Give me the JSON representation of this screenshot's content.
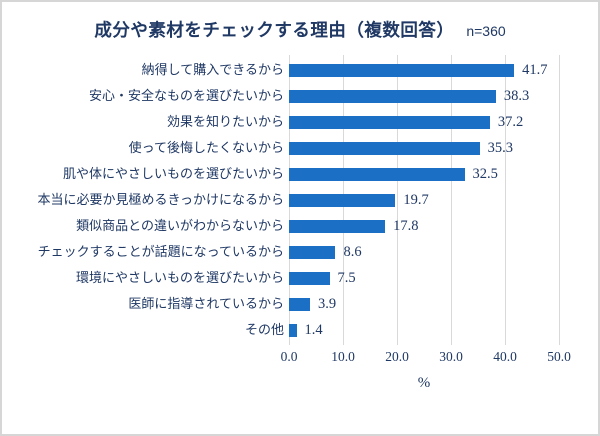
{
  "header": {
    "title": "成分や素材をチェックする理由（複数回答）",
    "sample_size": "n=360"
  },
  "chart_data": {
    "type": "bar",
    "orientation": "horizontal",
    "title": "成分や素材をチェックする理由（複数回答）",
    "subtitle": "n=360",
    "categories": [
      "納得して購入できるから",
      "安心・安全なものを選びたいから",
      "効果を知りたいから",
      "使って後悔したくないから",
      "肌や体にやさしいものを選びたいから",
      "本当に必要か見極めるきっかけになるから",
      "類似商品との違いがわからないから",
      "チェックすることが話題になっているから",
      "環境にやさしいものを選びたいから",
      "医師に指導されているから",
      "その他"
    ],
    "values": [
      41.7,
      38.3,
      37.2,
      35.3,
      32.5,
      19.7,
      17.8,
      8.6,
      7.5,
      3.9,
      1.4
    ],
    "xlabel": "%",
    "ylabel": "",
    "xlim": [
      0,
      50
    ],
    "x_ticks": [
      "0.0",
      "10.0",
      "20.0",
      "30.0",
      "40.0",
      "50.0"
    ],
    "grid": true,
    "value_labels": true,
    "legend_position": "none",
    "colors": {
      "bar": "#1b6fc4",
      "text": "#1F3864",
      "gridline": "#d9d9d9"
    }
  }
}
